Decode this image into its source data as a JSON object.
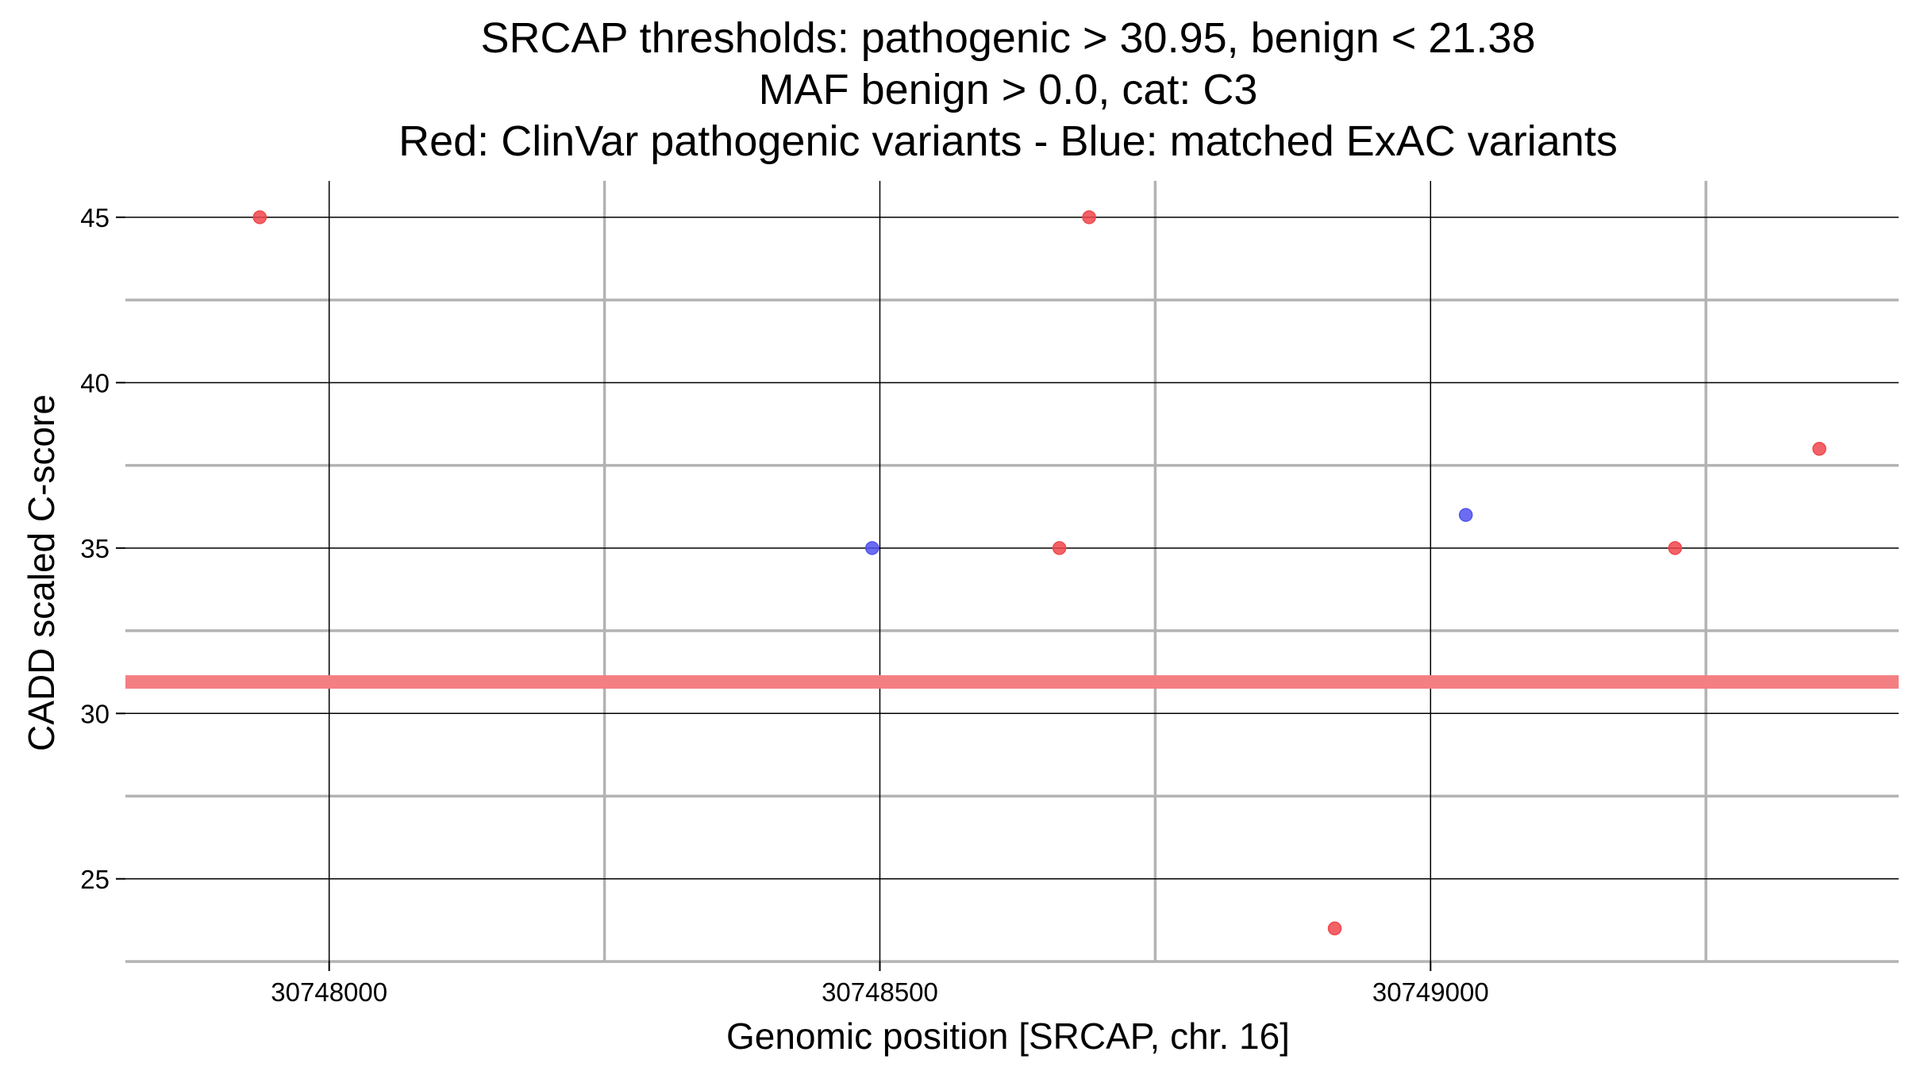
{
  "chart_data": {
    "type": "scatter",
    "title": [
      "SRCAP thresholds: pathogenic > 30.95, benign < 21.38",
      "MAF benign > 0.0, cat: C3",
      "Red: ClinVar pathogenic variants - Blue: matched ExAC variants"
    ],
    "xlabel": "Genomic position [SRCAP, chr. 16]",
    "ylabel": "CADD scaled C-score",
    "xlim": [
      30747815,
      30749425
    ],
    "ylim": [
      22.5,
      46.1
    ],
    "x_major_ticks": [
      30748000,
      30748500,
      30749000
    ],
    "x_minor_gridlines": [
      30748250,
      30748750,
      30749250
    ],
    "y_major_ticks": [
      25,
      30,
      35,
      40,
      45
    ],
    "y_minor_gridlines": [
      22.5,
      27.5,
      32.5,
      37.5,
      42.5
    ],
    "threshold_line": {
      "y": 30.95,
      "color": "#f47f83"
    },
    "series": [
      {
        "name": "ClinVar pathogenic variants",
        "color": "#f0464b",
        "points": [
          {
            "x": 30747937,
            "y": 45
          },
          {
            "x": 30748690,
            "y": 45
          },
          {
            "x": 30748663,
            "y": 35
          },
          {
            "x": 30748913,
            "y": 23.5
          },
          {
            "x": 30749222,
            "y": 35
          },
          {
            "x": 30749353,
            "y": 38
          }
        ]
      },
      {
        "name": "matched ExAC variants",
        "color": "#5252f0",
        "points": [
          {
            "x": 30748493,
            "y": 35
          },
          {
            "x": 30749032,
            "y": 36
          }
        ]
      }
    ]
  }
}
